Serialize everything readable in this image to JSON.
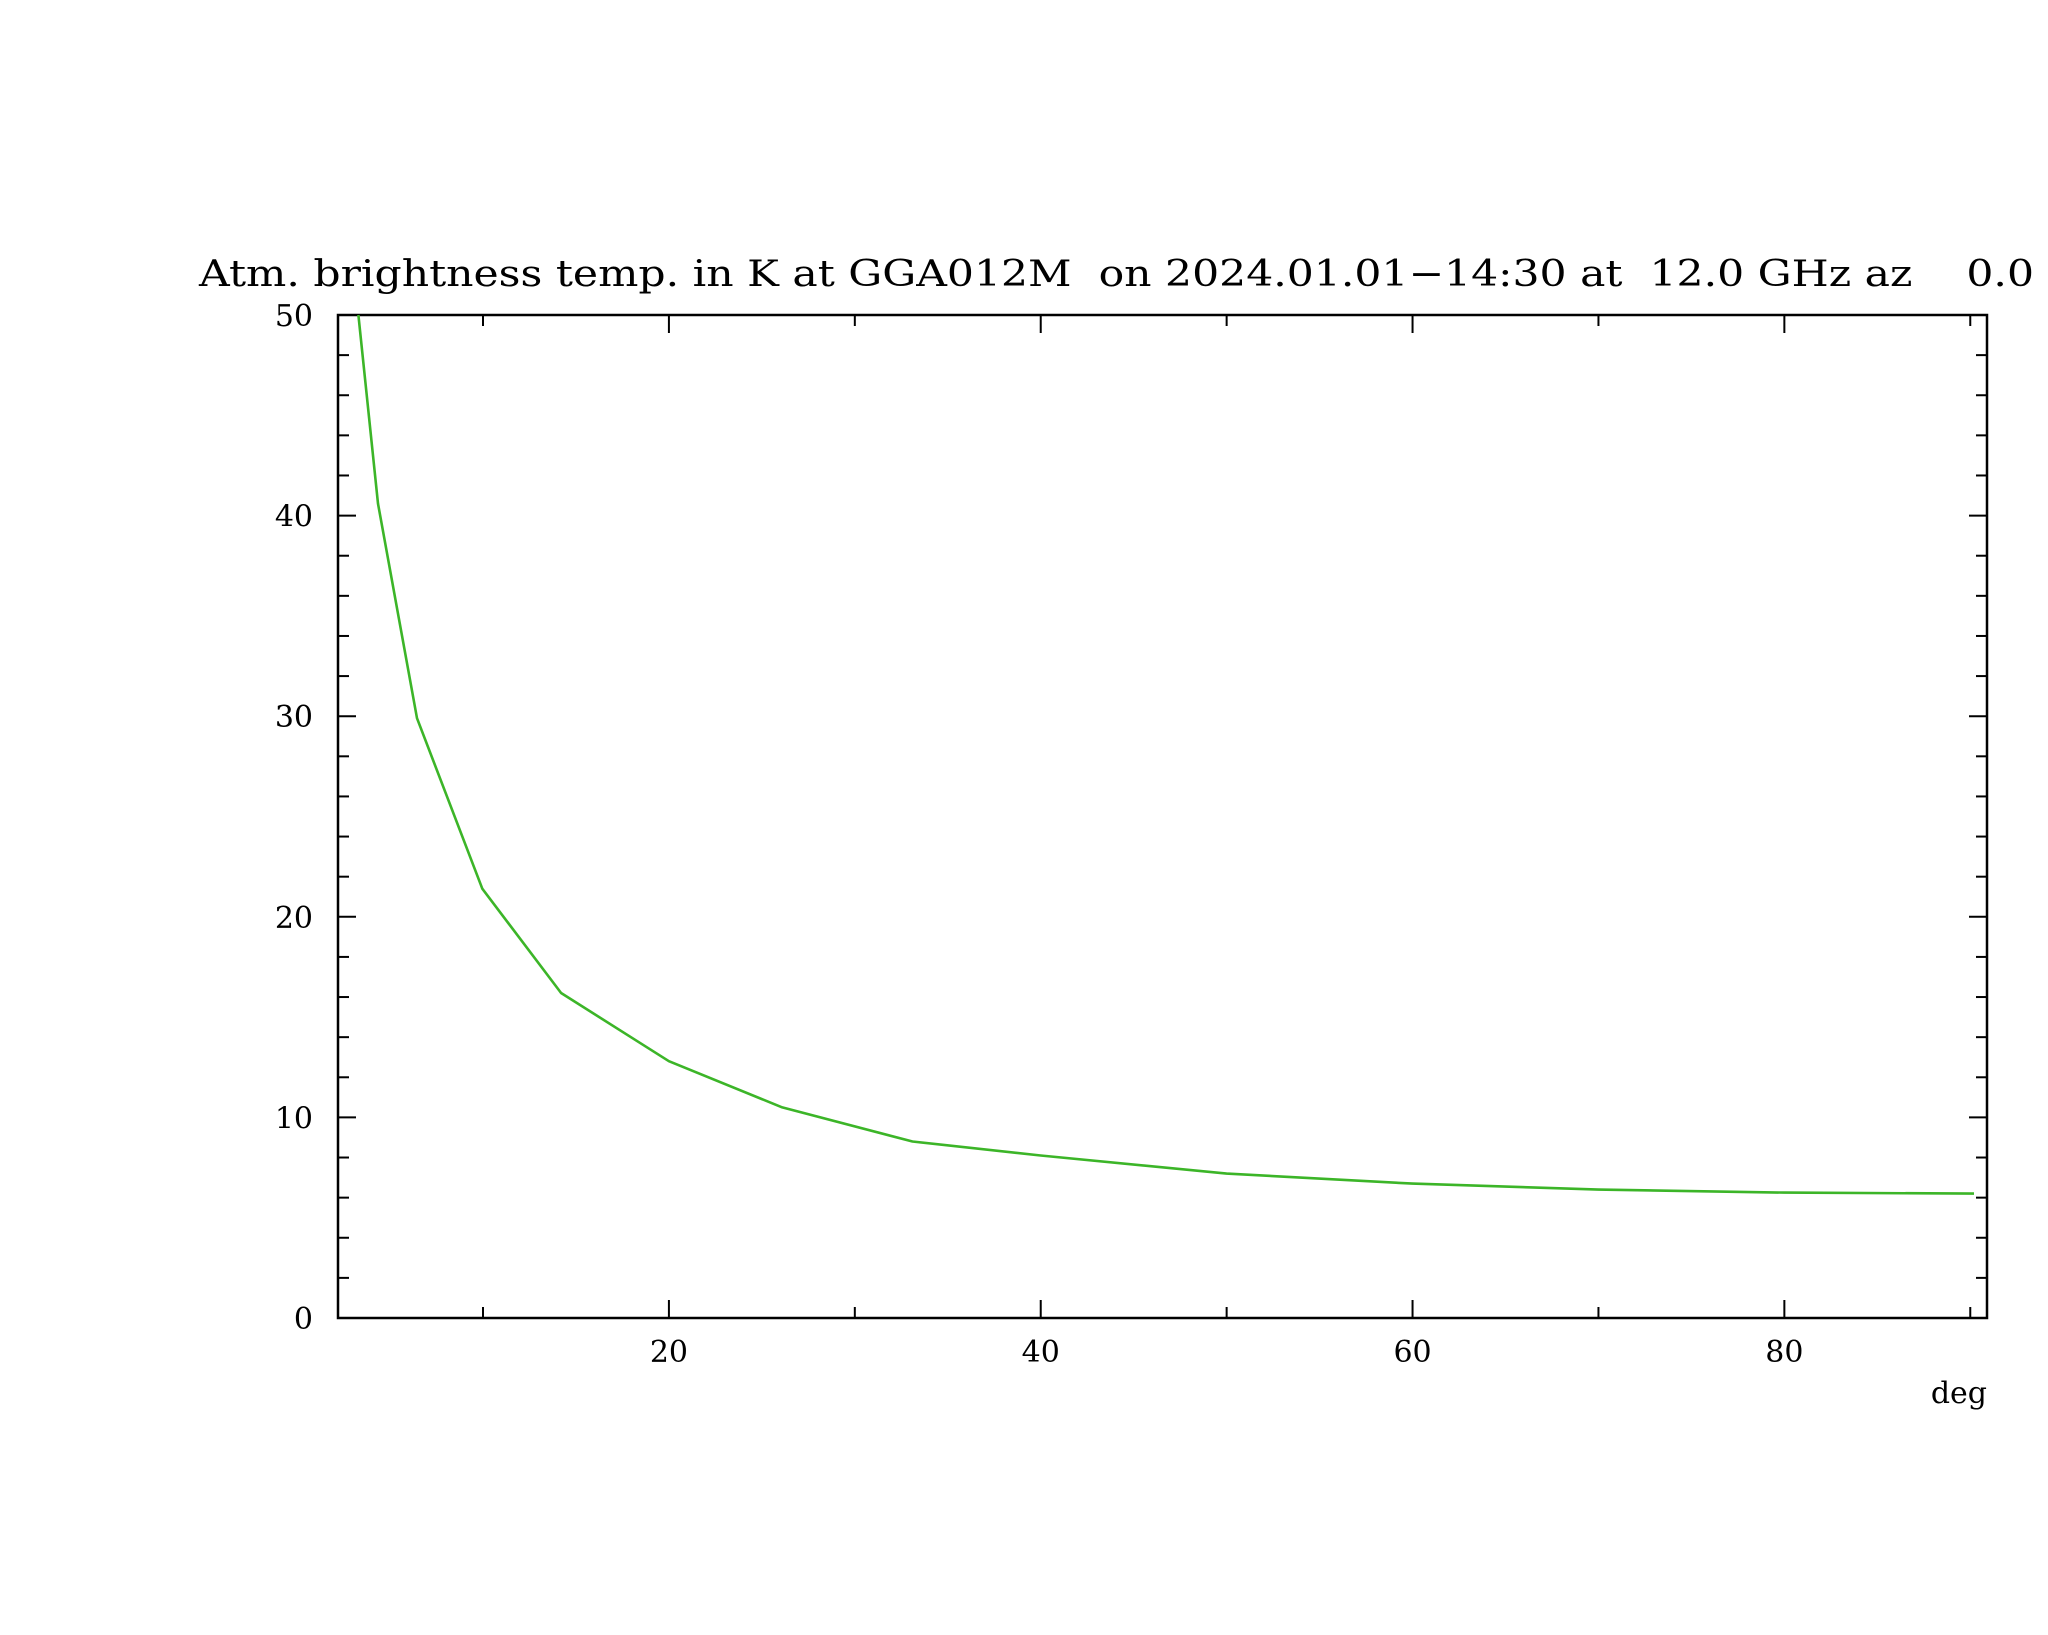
{
  "chart_data": {
    "type": "line",
    "title": "Atm. brightness temp. in K at GGA012M  on 2024.01.01−14:30 at  12.0 GHz az    0.0",
    "x_label": "deg",
    "x": [
      3.3,
      4.35,
      6.45,
      9.96,
      14.2,
      20,
      26.1,
      33.1,
      40,
      50,
      60,
      70,
      80,
      90.2
    ],
    "values": [
      50,
      40.6,
      29.9,
      21.4,
      16.2,
      12.8,
      10.5,
      8.8,
      8.1,
      7.2,
      6.7,
      6.4,
      6.25,
      6.2
    ],
    "color": "#3cb528",
    "xlim": [
      2.2,
      90.9
    ],
    "xticks": [
      20,
      40,
      60,
      80
    ],
    "xminorticks": [
      10,
      30,
      50,
      70,
      90
    ],
    "ylim": [
      0,
      50
    ],
    "yticks": [
      0,
      10,
      20,
      30,
      40,
      50
    ],
    "yminorticks": [
      2,
      4,
      6,
      8,
      12,
      14,
      16,
      18,
      22,
      24,
      26,
      28,
      32,
      34,
      36,
      38,
      42,
      44,
      46,
      48
    ]
  }
}
